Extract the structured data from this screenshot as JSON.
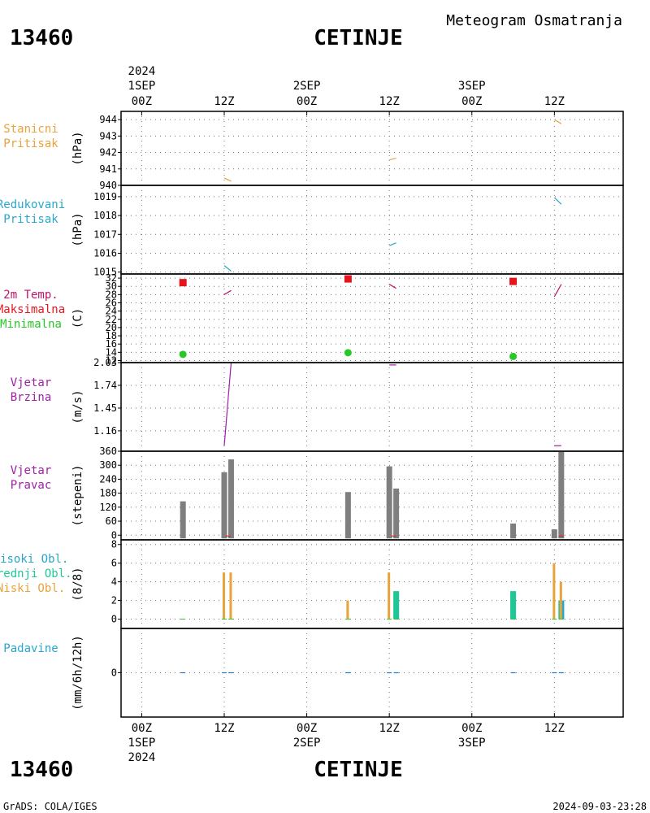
{
  "header": {
    "station_id": "13460",
    "station_name": "CETINJE",
    "product": "Meteogram Osmatranja"
  },
  "footer": {
    "credit": "GrADS: COLA/IGES",
    "timestamp": "2024-09-03-23:28"
  },
  "colors": {
    "orange": "#e8a33a",
    "cyan": "#2aa7c9",
    "magenta": "#c0146e",
    "red": "#e8141c",
    "green": "#28c828",
    "purple": "#a01ea8",
    "gray": "#7f7f7f",
    "teal": "#1ec896",
    "precip": "#1e78c8"
  },
  "time_axis": {
    "year": "2024",
    "ticks": [
      {
        "hour": 0,
        "label": "00Z",
        "date": "1SEP"
      },
      {
        "hour": 12,
        "label": "12Z",
        "date": ""
      },
      {
        "hour": 24,
        "label": "00Z",
        "date": "2SEP"
      },
      {
        "hour": 36,
        "label": "12Z",
        "date": ""
      },
      {
        "hour": 48,
        "label": "00Z",
        "date": "3SEP"
      },
      {
        "hour": 60,
        "label": "12Z",
        "date": ""
      }
    ],
    "range_hours": [
      -3,
      70
    ]
  },
  "panels": {
    "stanicni": {
      "labels": [
        "Stanicni",
        "Pritisak"
      ],
      "unit": "(hPa)",
      "ylim": [
        940,
        944.5
      ],
      "yticks": [
        940,
        941,
        942,
        943,
        944
      ]
    },
    "redukovani": {
      "labels": [
        "Redukovani",
        "Pritisak"
      ],
      "unit": "(hPa)",
      "ylim": [
        1014.9,
        1019.6
      ],
      "yticks": [
        1015,
        1016,
        1017,
        1018,
        1019
      ]
    },
    "temperatura": {
      "labels": [
        "2m Temp.",
        "Maksimalna",
        "Minimalna"
      ],
      "unit": "(C)",
      "ylim": [
        11.5,
        33
      ],
      "yticks": [
        12,
        14,
        16,
        18,
        20,
        22,
        24,
        26,
        28,
        30,
        32
      ]
    },
    "brzina": {
      "labels": [
        "Vjetar",
        "Brzina"
      ],
      "unit": "(m/s)",
      "ylim": [
        0.9,
        2.03
      ],
      "yticks": [
        1.16,
        1.45,
        1.74,
        2.03
      ]
    },
    "pravac": {
      "labels": [
        "Vjetar",
        "Pravac"
      ],
      "unit": "(stepeni)",
      "ylim": [
        -20,
        360
      ],
      "yticks": [
        0,
        60,
        120,
        180,
        240,
        300,
        360
      ]
    },
    "oblaci": {
      "labels": [
        "Visoki Obl.",
        "Srednji Obl.",
        "Niski Obl."
      ],
      "unit": "(8/8)",
      "ylim": [
        -1,
        8.5
      ],
      "yticks": [
        0,
        2,
        4,
        6,
        8
      ]
    },
    "padavine": {
      "labels": [
        "Padavine"
      ],
      "unit": "(mm/6h/12h)",
      "ylim": [
        -4,
        4
      ],
      "yticks": [
        0
      ]
    }
  },
  "chart_data": [
    {
      "type": "line",
      "title": "Stanicni Pritisak",
      "ylabel": "(hPa)",
      "series": [
        {
          "values": [
            [
              12,
              940.45
            ],
            [
              13,
              940.25
            ]
          ]
        },
        {
          "values": [
            [
              36,
              941.55
            ],
            [
              37,
              941.65
            ]
          ]
        },
        {
          "values": [
            [
              60,
              944.0
            ],
            [
              61,
              943.75
            ]
          ]
        }
      ]
    },
    {
      "type": "line",
      "title": "Redukovani Pritisak",
      "ylabel": "(hPa)",
      "series": [
        {
          "values": [
            [
              12,
              1015.35
            ],
            [
              13,
              1015.05
            ]
          ]
        },
        {
          "values": [
            [
              36,
              1016.4
            ],
            [
              37,
              1016.55
            ]
          ]
        },
        {
          "values": [
            [
              60,
              1018.95
            ],
            [
              61,
              1018.6
            ]
          ]
        }
      ]
    },
    {
      "type": "scatter",
      "title": "2m Temp. Maksimalna Minimalna",
      "ylabel": "(C)",
      "series": [
        {
          "name": "2m Temp.",
          "kind": "line",
          "segments": [
            [
              [
                12,
                28.0
              ],
              [
                13,
                29.0
              ]
            ],
            [
              [
                36,
                30.5
              ],
              [
                37,
                29.5
              ]
            ],
            [
              [
                60,
                27.5
              ],
              [
                61,
                30.5
              ]
            ]
          ]
        },
        {
          "name": "Maksimalna",
          "kind": "square",
          "values": [
            [
              6,
              30.9
            ],
            [
              30,
              31.8
            ],
            [
              54,
              31.2
            ]
          ]
        },
        {
          "name": "Minimalna",
          "kind": "circle",
          "values": [
            [
              6,
              13.5
            ],
            [
              30,
              13.9
            ],
            [
              54,
              13.0
            ]
          ]
        }
      ]
    },
    {
      "type": "line",
      "title": "Vjetar Brzina",
      "ylabel": "(m/s)",
      "series": [
        {
          "values": [
            [
              12,
              0.97
            ],
            [
              13,
              2.03
            ]
          ]
        },
        {
          "values": [
            [
              36,
              2.0
            ],
            [
              37,
              2.0
            ]
          ]
        },
        {
          "values": [
            [
              60,
              0.97
            ],
            [
              61,
              0.97
            ]
          ]
        }
      ]
    },
    {
      "type": "bar",
      "title": "Vjetar Pravac",
      "ylabel": "(stepeni)",
      "x": [
        6,
        12,
        13,
        30,
        36,
        37,
        54,
        60,
        61
      ],
      "values": [
        145,
        270,
        325,
        185,
        295,
        200,
        50,
        25,
        360
      ]
    },
    {
      "type": "bar",
      "title": "Visoki Obl. Srednji Obl. Niski Obl.",
      "ylabel": "(8/8)",
      "x": [
        6,
        12,
        13,
        30,
        36,
        37,
        54,
        60,
        61
      ],
      "series": [
        {
          "name": "Visoki Obl.",
          "values": [
            0,
            0,
            0,
            0,
            0,
            0,
            0,
            0,
            2
          ]
        },
        {
          "name": "Srednji Obl.",
          "values": [
            0,
            0,
            0,
            0,
            0,
            3,
            3,
            0,
            2
          ]
        },
        {
          "name": "Niski Obl.",
          "values": [
            0,
            5,
            5,
            2,
            5,
            0,
            0,
            6,
            4
          ]
        }
      ]
    },
    {
      "type": "bar",
      "title": "Padavine",
      "ylabel": "(mm/6h/12h)",
      "x": [
        6,
        12,
        13,
        30,
        36,
        37,
        54,
        60,
        61
      ],
      "values": [
        0,
        0,
        0,
        0,
        0,
        0,
        0,
        0,
        0
      ]
    }
  ]
}
